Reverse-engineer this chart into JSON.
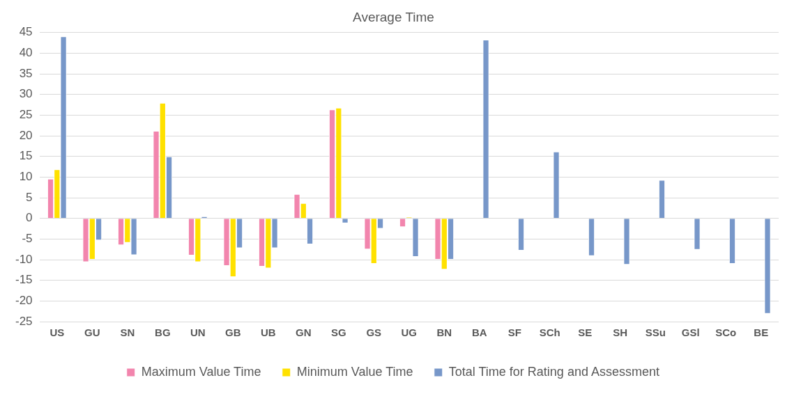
{
  "chart_data": {
    "type": "bar",
    "title": "Average Time",
    "categories": [
      "US",
      "GU",
      "SN",
      "BG",
      "UN",
      "GB",
      "UB",
      "GN",
      "SG",
      "GS",
      "UG",
      "BN",
      "BA",
      "SF",
      "SCh",
      "SE",
      "SH",
      "SSu",
      "GSl",
      "SCo",
      "BE"
    ],
    "series": [
      {
        "name": "Maximum Value Time",
        "color": "#f285ad",
        "values": [
          9.6,
          -10.6,
          -6.5,
          21.2,
          -9,
          -11.5,
          -11.7,
          5.9,
          26.4,
          -7.5,
          -2.1,
          -10,
          null,
          null,
          null,
          null,
          null,
          null,
          null,
          null,
          null
        ]
      },
      {
        "name": "Minimum Value Time",
        "color": "#ffe100",
        "values": [
          11.9,
          -10,
          -5.9,
          28,
          -10.6,
          -14.2,
          -12.1,
          3.7,
          26.8,
          -11,
          0.3,
          -12.4,
          null,
          null,
          null,
          null,
          null,
          null,
          null,
          null,
          null
        ]
      },
      {
        "name": "Total Time for Rating and Assessment",
        "color": "#7797c9",
        "values": [
          44.1,
          -5.3,
          -8.9,
          15,
          0.5,
          -7.2,
          -7.2,
          -6.3,
          -1.2,
          -2.5,
          -9.3,
          -10,
          43.3,
          -7.8,
          16.2,
          -9.1,
          -11.2,
          9.3,
          -7.6,
          -11,
          -23.1
        ]
      }
    ],
    "ylim": [
      -25,
      45
    ],
    "yticks": [
      -25,
      -20,
      -15,
      -10,
      -5,
      0,
      5,
      10,
      15,
      20,
      25,
      30,
      35,
      40,
      45
    ],
    "grid": "y",
    "legend": "bottom"
  }
}
